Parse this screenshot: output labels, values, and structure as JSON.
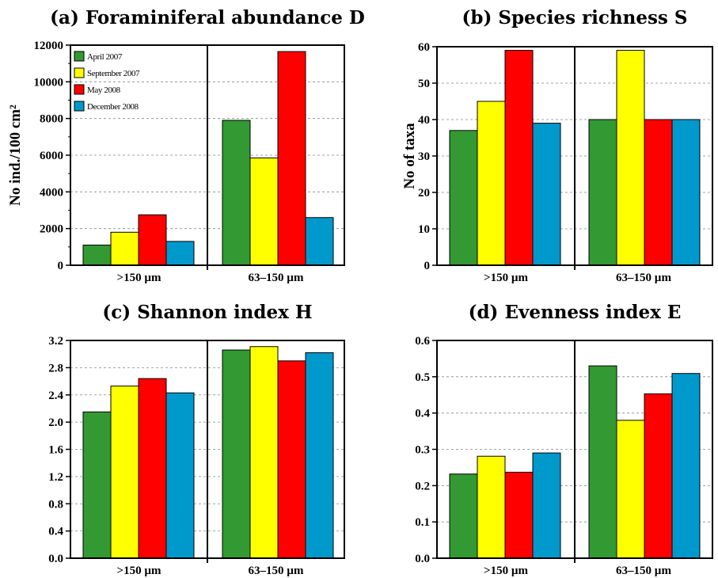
{
  "chart_data": [
    {
      "type": "bar",
      "title": "(a) Foraminiferal abundance D",
      "xlabel": "",
      "ylabel": "No ind./100 cm²",
      "ylim": [
        0,
        12000
      ],
      "yticks": [
        0,
        2000,
        4000,
        6000,
        8000,
        10000,
        12000
      ],
      "categories": [
        ">150 µm",
        "63–150 µm"
      ],
      "series": [
        {
          "name": "April 2007",
          "values": [
            1100,
            7900
          ]
        },
        {
          "name": "September 2007",
          "values": [
            1800,
            5850
          ]
        },
        {
          "name": "May 2008",
          "values": [
            2750,
            11650
          ]
        },
        {
          "name": "December 2008",
          "values": [
            1300,
            2600
          ]
        }
      ],
      "legend": "top-left",
      "grid": "horizontal dashed"
    },
    {
      "type": "bar",
      "title": "(b) Species richness S",
      "xlabel": "",
      "ylabel": "No of taxa",
      "ylim": [
        0,
        60
      ],
      "yticks": [
        0,
        10,
        20,
        30,
        40,
        50,
        60
      ],
      "categories": [
        ">150 µm",
        "63–150 µm"
      ],
      "series": [
        {
          "name": "April 2007",
          "values": [
            37,
            40
          ]
        },
        {
          "name": "September 2007",
          "values": [
            45,
            59
          ]
        },
        {
          "name": "May 2008",
          "values": [
            59,
            40
          ]
        },
        {
          "name": "December 2008",
          "values": [
            39,
            40
          ]
        }
      ],
      "grid": "horizontal dashed"
    },
    {
      "type": "bar",
      "title": "(c) Shannon index H",
      "xlabel": "",
      "ylabel": "",
      "ylim": [
        0,
        3.2
      ],
      "yticks": [
        "0.0",
        "0.4",
        "0.8",
        "1.2",
        "1.6",
        "2.0",
        "2.4",
        "2.8",
        "3.2"
      ],
      "categories": [
        ">150 µm",
        "63–150 µm"
      ],
      "series": [
        {
          "name": "April 2007",
          "values": [
            2.15,
            3.06
          ]
        },
        {
          "name": "September 2007",
          "values": [
            2.53,
            3.11
          ]
        },
        {
          "name": "May 2008",
          "values": [
            2.64,
            2.9
          ]
        },
        {
          "name": "December 2008",
          "values": [
            2.43,
            3.02
          ]
        }
      ],
      "grid": "horizontal dashed"
    },
    {
      "type": "bar",
      "title": "(d) Evenness index E",
      "xlabel": "",
      "ylabel": "",
      "ylim": [
        0,
        0.6
      ],
      "yticks": [
        "0.0",
        "0.1",
        "0.2",
        "0.3",
        "0.4",
        "0.5",
        "0.6"
      ],
      "categories": [
        ">150 µm",
        "63–150 µm"
      ],
      "series": [
        {
          "name": "April 2007",
          "values": [
            0.232,
            0.53
          ]
        },
        {
          "name": "September 2007",
          "values": [
            0.281,
            0.38
          ]
        },
        {
          "name": "May 2008",
          "values": [
            0.237,
            0.453
          ]
        },
        {
          "name": "December 2008",
          "values": [
            0.29,
            0.509
          ]
        }
      ],
      "grid": "horizontal dashed"
    }
  ],
  "colors": {
    "April 2007": "#339933",
    "September 2007": "#ffff00",
    "May 2008": "#ff0000",
    "December 2008": "#0099cc"
  }
}
